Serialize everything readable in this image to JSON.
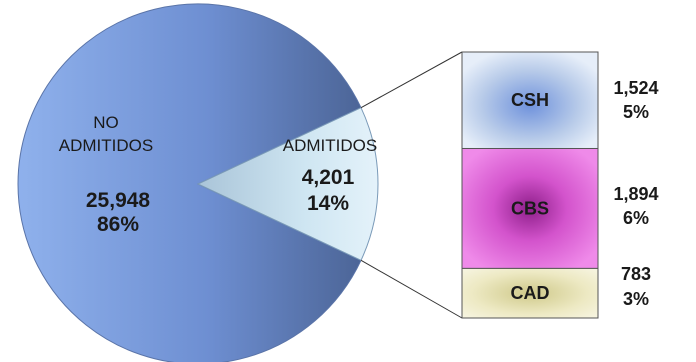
{
  "chart_data": [
    {
      "type": "pie",
      "slices": [
        {
          "name_lines": [
            "NO",
            "ADMITIDOS"
          ],
          "value": 25948,
          "value_label": "25,948",
          "percent_label": "86%",
          "percent": 86,
          "color": "#6f8fd0"
        },
        {
          "name_lines": [
            "ADMITIDOS"
          ],
          "value": 4201,
          "value_label": "4,201",
          "percent_label": "14%",
          "percent": 14,
          "color": "#cfe6f2",
          "exploded": true
        }
      ]
    },
    {
      "type": "bar",
      "stacked": true,
      "categories": [
        "CSH",
        "CBS",
        "CAD"
      ],
      "values": [
        1524,
        1894,
        783
      ],
      "value_labels": [
        "1,524",
        "1,894",
        "783"
      ],
      "percent_labels": [
        "5%",
        "6%",
        "3%"
      ],
      "colors": [
        "#b8cbe9",
        "#dc5ed4",
        "#ede9c3"
      ]
    }
  ]
}
